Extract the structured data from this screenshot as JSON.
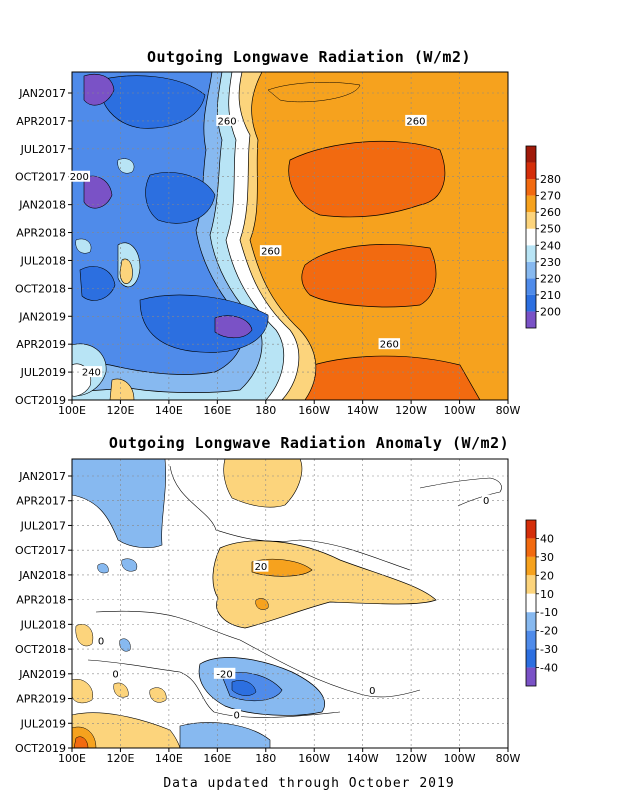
{
  "footer": "Data updated through October 2019",
  "chart_data": [
    {
      "type": "heatmap",
      "title": "Outgoing Longwave Radiation (W/m2)",
      "y_ticks": [
        "JAN2017",
        "APR2017",
        "JUL2017",
        "OCT2017",
        "JAN2018",
        "APR2018",
        "JUL2018",
        "OCT2018",
        "JAN2019",
        "APR2019",
        "JUL2019",
        "OCT2019"
      ],
      "x_ticks": [
        "100E",
        "120E",
        "140E",
        "160E",
        "180",
        "160W",
        "140W",
        "120W",
        "100W",
        "80W"
      ],
      "colorbar_ticks": [
        "200",
        "210",
        "220",
        "230",
        "240",
        "250",
        "260",
        "270",
        "280"
      ],
      "colorbar_colors": [
        "#7a52c6",
        "#2c6fe0",
        "#4f8bea",
        "#87b9f0",
        "#b8e4f5",
        "#ffffff",
        "#fcd47c",
        "#f6a21e",
        "#f26a10",
        "#d42e0a",
        "#a01a0a"
      ],
      "contour_labels": [
        {
          "text": "260",
          "lon": 164,
          "date": "APR2017"
        },
        {
          "text": "260",
          "lon": 242,
          "date": "APR2017"
        },
        {
          "text": "200",
          "lon": 103,
          "date": "OCT2017"
        },
        {
          "text": "260",
          "lon": 182,
          "date": "JUN2018"
        },
        {
          "text": "260",
          "lon": 231,
          "date": "APR2019"
        },
        {
          "text": "240",
          "lon": 108,
          "date": "JUL2019"
        }
      ],
      "field_summary": "Low OLR (190-230 W/m2) over 100E-170E warm pool; high OLR (260-275 W/m2) over 160W-100W; peak minima near 150E-160E in JAN2019"
    },
    {
      "type": "heatmap",
      "title": "Outgoing Longwave Radiation Anomaly (W/m2)",
      "y_ticks": [
        "JAN2017",
        "APR2017",
        "JUL2017",
        "OCT2017",
        "JAN2018",
        "APR2018",
        "JUL2018",
        "OCT2018",
        "JAN2019",
        "APR2019",
        "JUL2019",
        "OCT2019"
      ],
      "x_ticks": [
        "100E",
        "120E",
        "140E",
        "160E",
        "180",
        "160W",
        "140W",
        "120W",
        "100W",
        "80W"
      ],
      "colorbar_ticks": [
        "40",
        "30",
        "20",
        "10",
        "-10",
        "-20",
        "-30",
        "-40"
      ],
      "colorbar_colors": [
        "#d42e0a",
        "#f26a10",
        "#f6a21e",
        "#fcd47c",
        "#ffffff",
        "#87b9f0",
        "#4f8bea",
        "#2c6fe0",
        "#7a52c6"
      ],
      "contour_labels": [
        {
          "text": "20",
          "lon": 178,
          "date": "DEC2017"
        },
        {
          "text": "0",
          "lon": 112,
          "date": "SEP2018"
        },
        {
          "text": "0",
          "lon": 118,
          "date": "JAN2019"
        },
        {
          "text": "-20",
          "lon": 163,
          "date": "JAN2019"
        },
        {
          "text": "0",
          "lon": 224,
          "date": "MAR2019"
        },
        {
          "text": "0",
          "lon": 168,
          "date": "JUN2019"
        },
        {
          "text": "0",
          "lon": 271,
          "date": "APR2017"
        }
      ],
      "field_summary": "Positive anomalies (+10 to +30) near 160E-130W during 2017-2018; negative anomalies (-10 to -40) near 165E-180 in early 2019; positive anomalies near 100E-130E in late 2019"
    }
  ]
}
